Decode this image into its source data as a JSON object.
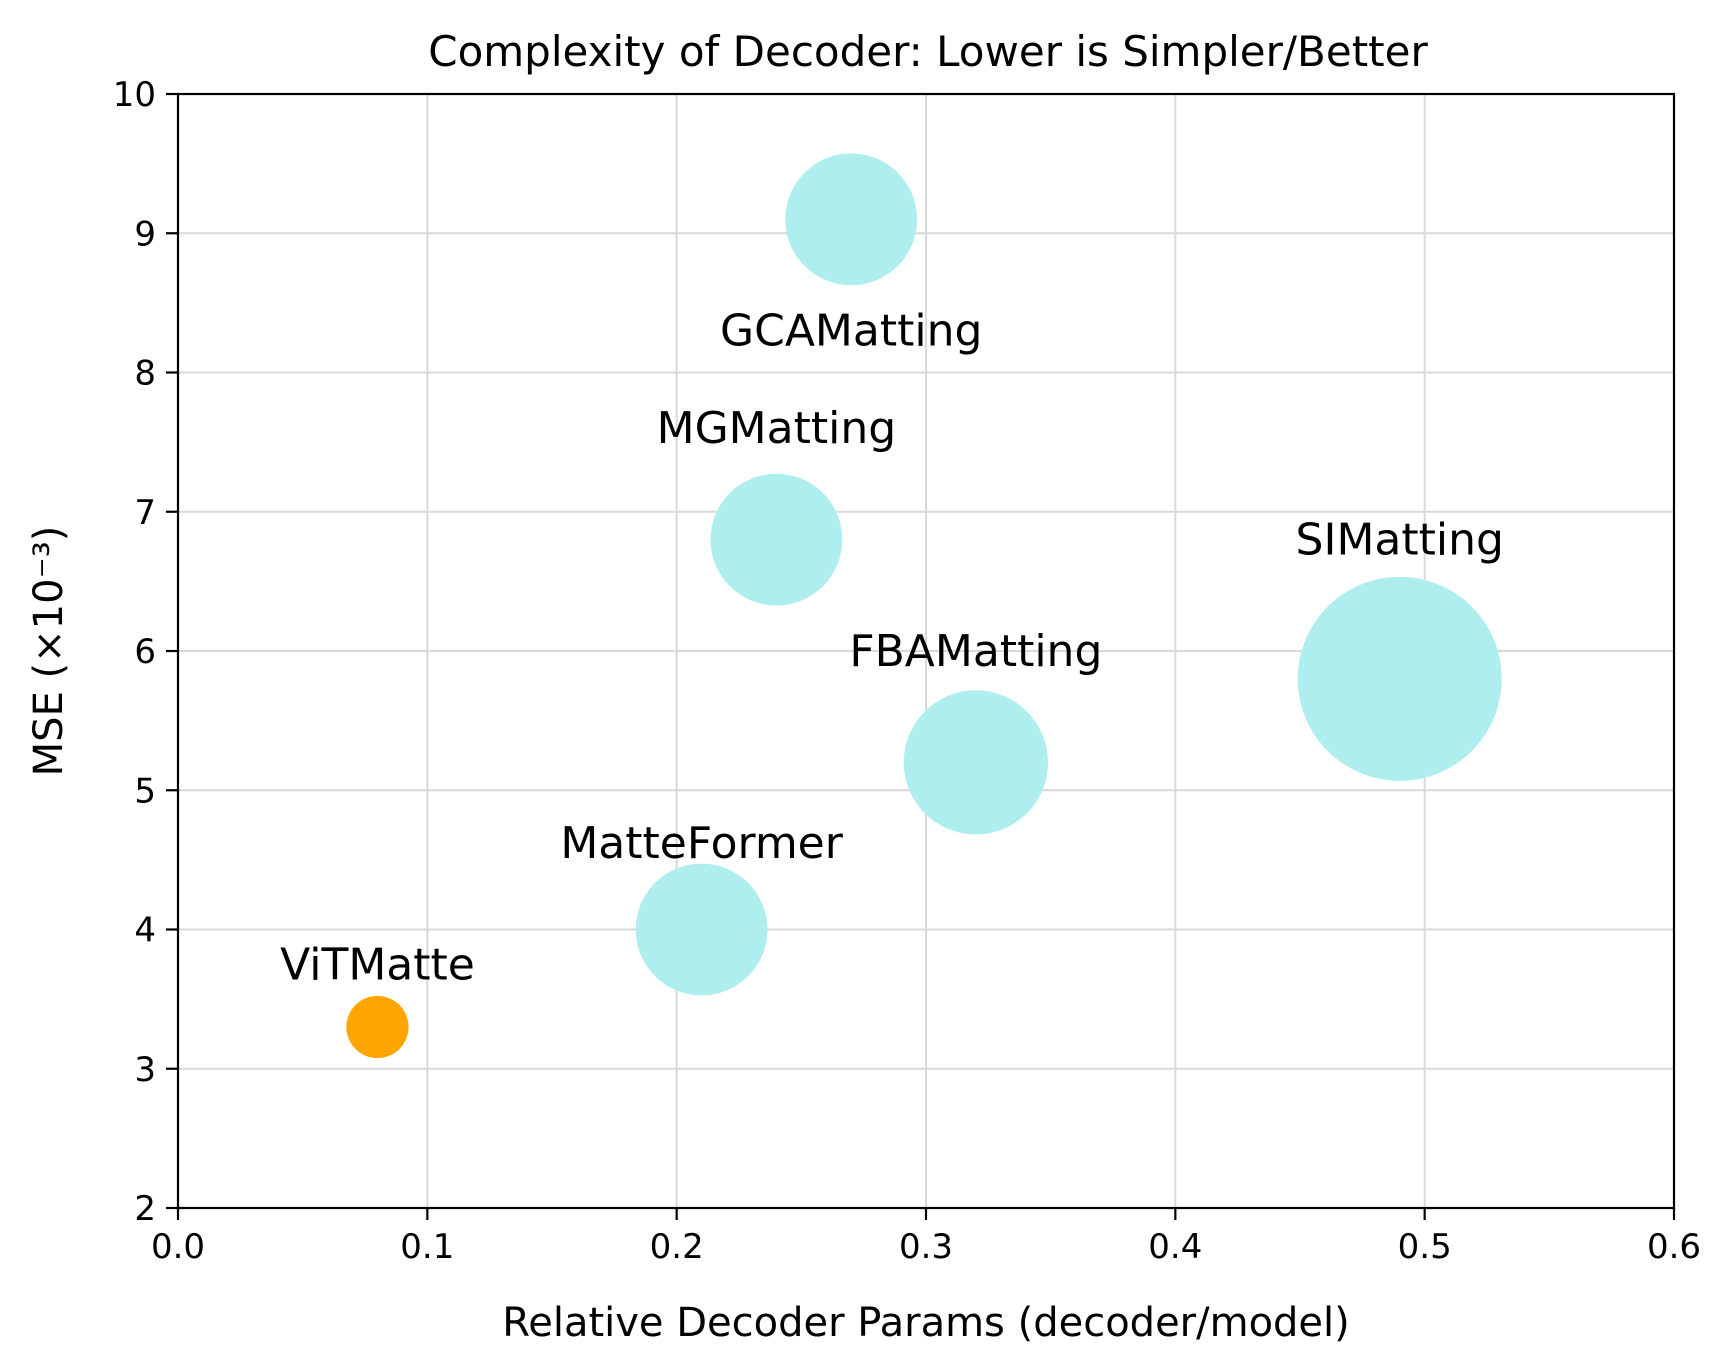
{
  "chart_data": {
    "type": "scatter",
    "title": "Complexity of Decoder: Lower is Simpler/Better",
    "xlabel": "Relative Decoder Params (decoder/model)",
    "ylabel": "MSE (×10⁻³)",
    "xlim": [
      0.0,
      0.6
    ],
    "ylim": [
      2,
      10
    ],
    "xticks": [
      0.0,
      0.1,
      0.2,
      0.3,
      0.4,
      0.5,
      0.6
    ],
    "xtick_labels": [
      "0.0",
      "0.1",
      "0.2",
      "0.3",
      "0.4",
      "0.5",
      "0.6"
    ],
    "yticks": [
      2,
      3,
      4,
      5,
      6,
      7,
      8,
      9,
      10
    ],
    "ytick_labels": [
      "2",
      "3",
      "4",
      "5",
      "6",
      "7",
      "8",
      "9",
      "10"
    ],
    "grid": true,
    "points": [
      {
        "name": "ViTMatte",
        "x": 0.08,
        "y": 3.3,
        "size": 0.25,
        "color": "#ffa500",
        "label_y": 3.75
      },
      {
        "name": "MatteFormer",
        "x": 0.21,
        "y": 4.0,
        "size": 0.53,
        "color": "#afeeee",
        "label_y": 4.62
      },
      {
        "name": "FBAMatting",
        "x": 0.32,
        "y": 5.2,
        "size": 0.58,
        "color": "#afeeee",
        "label_y": 6.0
      },
      {
        "name": "MGMatting",
        "x": 0.24,
        "y": 6.8,
        "size": 0.53,
        "color": "#afeeee",
        "label_y": 7.6
      },
      {
        "name": "GCAMatting",
        "x": 0.27,
        "y": 9.1,
        "size": 0.53,
        "color": "#afeeee",
        "label_y": 8.3
      },
      {
        "name": "SIMatting",
        "x": 0.49,
        "y": 5.8,
        "size": 0.82,
        "color": "#afeeee",
        "label_y": 6.8
      }
    ]
  }
}
